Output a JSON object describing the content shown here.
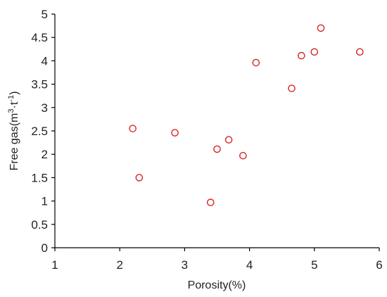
{
  "chart_data": {
    "type": "scatter",
    "title": "",
    "xlabel": "Porosity(%)",
    "ylabel_main": "Free gas(m",
    "ylabel_sup1": "3",
    "ylabel_mid": "·t",
    "ylabel_sup2": "-1",
    "ylabel_end": ")",
    "xlim": [
      1,
      6
    ],
    "ylim": [
      0,
      5
    ],
    "xticks": [
      1,
      2,
      3,
      4,
      5,
      6
    ],
    "yticks": [
      0,
      0.5,
      1,
      1.5,
      2,
      2.5,
      3,
      3.5,
      4,
      4.5,
      5
    ],
    "marker_color": "#d62728",
    "grid": false,
    "points": [
      {
        "x": 2.2,
        "y": 2.55
      },
      {
        "x": 2.3,
        "y": 1.5
      },
      {
        "x": 2.85,
        "y": 2.46
      },
      {
        "x": 3.4,
        "y": 0.97
      },
      {
        "x": 3.5,
        "y": 2.11
      },
      {
        "x": 3.68,
        "y": 2.31
      },
      {
        "x": 3.9,
        "y": 1.97
      },
      {
        "x": 4.1,
        "y": 3.96
      },
      {
        "x": 4.65,
        "y": 3.41
      },
      {
        "x": 4.8,
        "y": 4.11
      },
      {
        "x": 5.0,
        "y": 4.19
      },
      {
        "x": 5.1,
        "y": 4.7
      },
      {
        "x": 5.7,
        "y": 4.19
      }
    ]
  }
}
